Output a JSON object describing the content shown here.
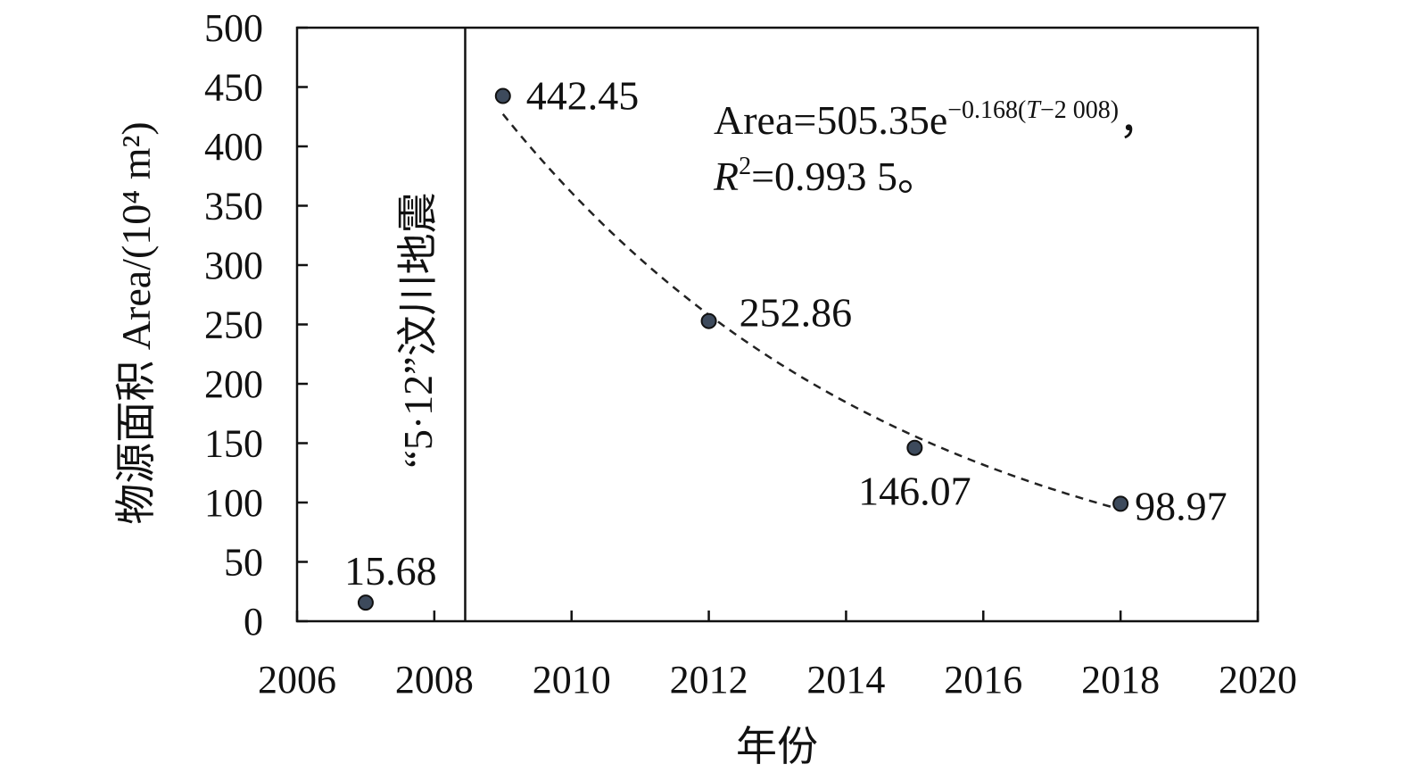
{
  "chart_data": {
    "type": "scatter",
    "title": "",
    "xlabel": "年份",
    "ylabel": "物源面积 Area/(10⁴ m²)",
    "xlim": [
      2006,
      2020
    ],
    "ylim": [
      0,
      500
    ],
    "x_ticks": [
      "2006",
      "2008",
      "2010",
      "2012",
      "2014",
      "2016",
      "2018",
      "2020"
    ],
    "y_ticks": [
      "0",
      "50",
      "100",
      "150",
      "200",
      "250",
      "300",
      "350",
      "400",
      "450",
      "500"
    ],
    "points": [
      {
        "x": 2007,
        "y": 15.68,
        "label": "15.68"
      },
      {
        "x": 2009,
        "y": 442.45,
        "label": "442.45"
      },
      {
        "x": 2012,
        "y": 252.86,
        "label": "252.86"
      },
      {
        "x": 2015,
        "y": 146.07,
        "label": "146.07"
      },
      {
        "x": 2018,
        "y": 98.97,
        "label": "98.97"
      }
    ],
    "fit": {
      "type": "exponential",
      "a": 505.35,
      "b": -0.168,
      "t0": 2008,
      "range": [
        2009,
        2018
      ],
      "style": "dashed",
      "equation_main": "Area=505.35e",
      "equation_exp": "−0.168(",
      "equation_exp_var": "T",
      "equation_exp_rest": "−2 008)",
      "equation_tail": "，",
      "r2_var": "R",
      "r2_sup": "2",
      "r2_text": "=0.993 5。"
    },
    "event": {
      "x": 2008.45,
      "label": "“5·12”汶川地震"
    },
    "grid": false,
    "legend": "none",
    "colors": {
      "marker_fill": "#3d4a5c",
      "marker_stroke": "#111111",
      "axis": "#111111",
      "fit_line": "#222222"
    }
  }
}
